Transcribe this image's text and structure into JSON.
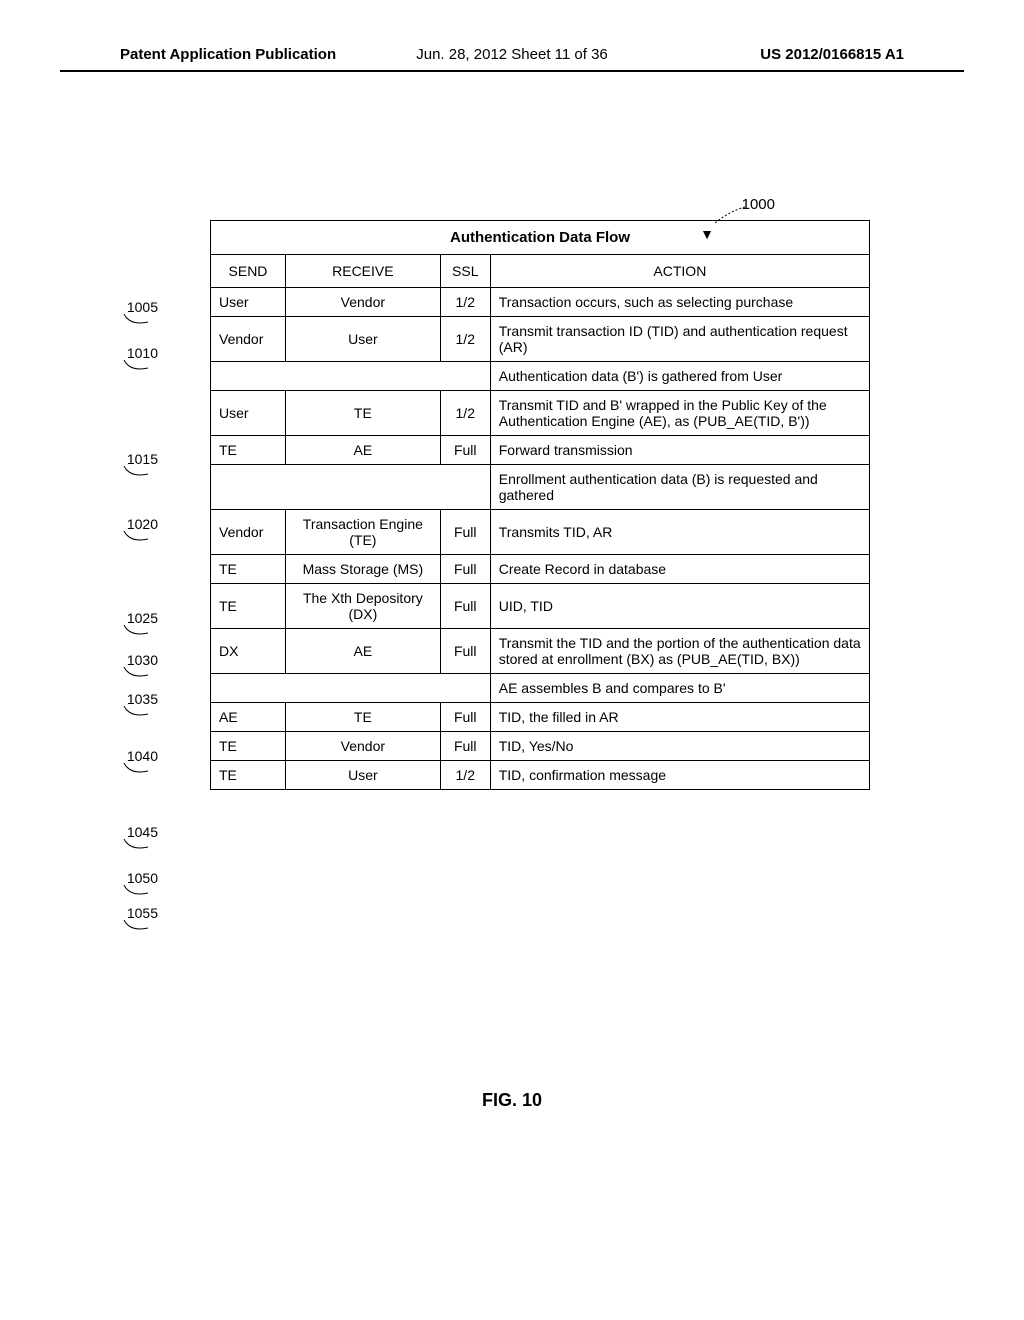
{
  "header": {
    "left": "Patent Application Publication",
    "center": "Jun. 28, 2012  Sheet 11 of 36",
    "right": "US 2012/0166815 A1"
  },
  "figure": {
    "ref_main": "1000",
    "caption": "FIG. 10",
    "title": "Authentication Data Flow",
    "columns": {
      "send": "SEND",
      "receive": "RECEIVE",
      "ssl": "SSL",
      "action": "ACTION"
    },
    "rows": [
      {
        "ref": "1005",
        "send": "User",
        "receive": "Vendor",
        "ssl": "1/2",
        "action": "Transaction occurs, such as selecting purchase"
      },
      {
        "ref": "1010",
        "send": "Vendor",
        "receive": "User",
        "ssl": "1/2",
        "action": "Transmit transaction ID (TID) and authentication request (AR)"
      },
      {
        "ref": "",
        "send": "",
        "receive": "",
        "ssl": "",
        "action": "Authentication data (B') is gathered from User",
        "merged": true
      },
      {
        "ref": "1015",
        "send": "User",
        "receive": "TE",
        "ssl": "1/2",
        "action": "Transmit TID and B' wrapped in the Public Key of the Authentication Engine (AE), as (PUB_AE(TID, B'))"
      },
      {
        "ref": "1020",
        "send": "TE",
        "receive": "AE",
        "ssl": "Full",
        "action": "Forward transmission"
      },
      {
        "ref": "",
        "send": "",
        "receive": "",
        "ssl": "",
        "action": "Enrollment authentication data (B) is requested and gathered",
        "merged": true
      },
      {
        "ref": "1025",
        "send": "Vendor",
        "receive": "Transaction Engine (TE)",
        "ssl": "Full",
        "action": "Transmits TID, AR"
      },
      {
        "ref": "1030",
        "send": "TE",
        "receive": "Mass Storage (MS)",
        "ssl": "Full",
        "action": "Create Record in database"
      },
      {
        "ref": "1035",
        "send": "TE",
        "receive": "The Xth Depository (DX)",
        "ssl": "Full",
        "action": "UID, TID"
      },
      {
        "ref": "1040",
        "send": "DX",
        "receive": "AE",
        "ssl": "Full",
        "action": "Transmit the TID and the portion of the authentication data stored at enrollment (BX) as (PUB_AE(TID, BX))"
      },
      {
        "ref": "1045",
        "send": "",
        "receive": "",
        "ssl": "",
        "action": "AE assembles B and compares to B'",
        "merged": true
      },
      {
        "ref": "1050",
        "send": "AE",
        "receive": "TE",
        "ssl": "Full",
        "action": "TID, the filled in AR"
      },
      {
        "ref": "1055",
        "send": "TE",
        "receive": "Vendor",
        "ssl": "Full",
        "action": "TID, Yes/No"
      },
      {
        "ref": "",
        "send": "TE",
        "receive": "User",
        "ssl": "1/2",
        "action": "TID, confirmation message"
      }
    ],
    "row_label_offsets": [
      79,
      125,
      0,
      231,
      296,
      0,
      390,
      432,
      471,
      528,
      604,
      650,
      685,
      0
    ]
  },
  "colors": {
    "text": "#000000",
    "background": "#ffffff",
    "border": "#000000"
  }
}
